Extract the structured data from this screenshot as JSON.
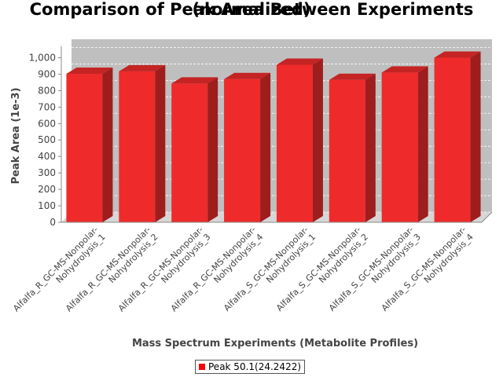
{
  "title_line1": "Comparison of Peak Area Between Experiments",
  "title_line2": "(normalized)",
  "legend_label": "Peak 50.1(24.2422)",
  "colors": {
    "bar": "#ef2a2a",
    "bar_top": "#c42424",
    "bar_side": "#9e1d1d",
    "plot_bg": "#bfbfbf",
    "legend": "#ff0000"
  },
  "chart_data": {
    "type": "bar",
    "title": "Comparison of Peak Area Between Experiments (normalized)",
    "xlabel": "Mass Spectrum Experiments (Metabolite Profiles)",
    "ylabel": "Peak Area (1e-3)",
    "ylim": [
      0,
      1050
    ],
    "yticks": [
      0,
      100,
      200,
      300,
      400,
      500,
      600,
      700,
      800,
      900,
      1000
    ],
    "ytick_labels": [
      "0",
      "100",
      "200",
      "300",
      "400",
      "500",
      "600",
      "700",
      "800",
      "900",
      "1,000"
    ],
    "grid": true,
    "legend_position": "bottom",
    "categories": [
      [
        "Alfalfa_R_GC-MS-Nonpolar-",
        "Nohydrolysis_1"
      ],
      [
        "Alfalfa_R_GC-MS-Nonpolar-",
        "Nohydrolysis_2"
      ],
      [
        "Alfalfa_R_GC-MS-Nonpolar-",
        "Nohydrolysis_3"
      ],
      [
        "Alfalfa_R_GC-MS-Nonpolar-",
        "Nohydrolysis_4"
      ],
      [
        "Alfalfa_S_GC-MS-Nonpolar-",
        "Nohydrolysis_1"
      ],
      [
        "Alfalfa_S_GC-MS-Nonpolar-",
        "Nohydrolysis_2"
      ],
      [
        "Alfalfa_S_GC-MS-Nonpolar-",
        "Nohydrolysis_3"
      ],
      [
        "Alfalfa_S_GC-MS-Nonpolar-",
        "Nohydrolysis_4"
      ]
    ],
    "series": [
      {
        "name": "Peak 50.1(24.2422)",
        "values": [
          902,
          917,
          843,
          870,
          957,
          865,
          910,
          1000
        ]
      }
    ]
  }
}
